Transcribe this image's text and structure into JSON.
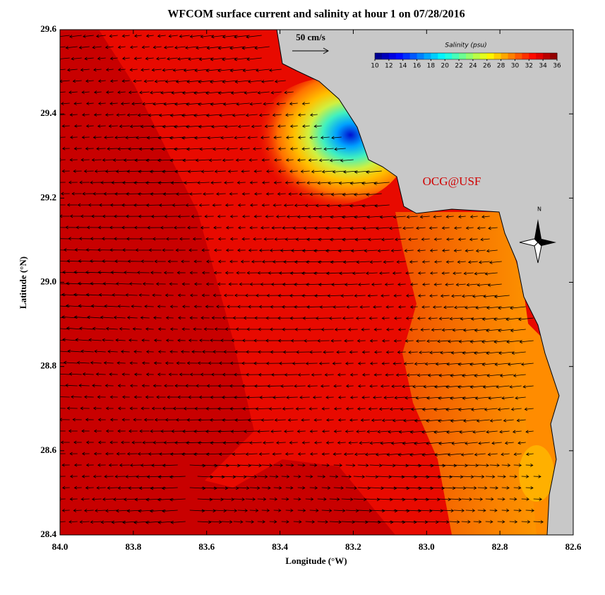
{
  "title": "WFCOM surface current and salinity at hour 1 on 07/28/2016",
  "x_axis": {
    "label": "Longitude (°W)",
    "lim": [
      84,
      82.6
    ],
    "ticks": [
      {
        "value": 84,
        "label": "84.0"
      },
      {
        "value": 83.8,
        "label": "83.8"
      },
      {
        "value": 83.6,
        "label": "83.6"
      },
      {
        "value": 83.4,
        "label": "83.4"
      },
      {
        "value": 83.2,
        "label": "83.2"
      },
      {
        "value": 83,
        "label": "83.0"
      },
      {
        "value": 82.8,
        "label": "82.8"
      },
      {
        "value": 82.6,
        "label": "82.6"
      }
    ]
  },
  "y_axis": {
    "label": "Latitude (°N)",
    "lim": [
      28.4,
      29.6
    ],
    "ticks": [
      {
        "value": 28.4,
        "label": "28.4"
      },
      {
        "value": 28.6,
        "label": "28.6"
      },
      {
        "value": 28.8,
        "label": "28.8"
      },
      {
        "value": 29,
        "label": "29.0"
      },
      {
        "value": 29.2,
        "label": "29.2"
      },
      {
        "value": 29.4,
        "label": "29.4"
      },
      {
        "value": 29.6,
        "label": "29.6"
      }
    ]
  },
  "colorbar": {
    "label": "Salinity (psu)",
    "range": [
      10,
      36
    ],
    "ticks": [
      10,
      12,
      14,
      16,
      18,
      20,
      22,
      24,
      26,
      28,
      30,
      32,
      34,
      36
    ]
  },
  "scale_arrow_label": "50 cm/s",
  "watermark": "OCG@USF",
  "compass_label": "N"
}
